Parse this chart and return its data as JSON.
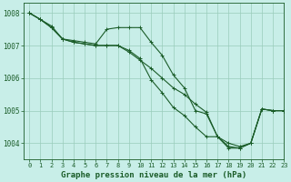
{
  "background_color": "#c8eee8",
  "grid_color": "#99ccbb",
  "line_color": "#1a5c28",
  "title": "Graphe pression niveau de la mer (hPa)",
  "xlim": [
    -0.5,
    23
  ],
  "ylim": [
    1003.5,
    1008.3
  ],
  "yticks": [
    1004,
    1005,
    1006,
    1007,
    1008
  ],
  "xticks": [
    0,
    1,
    2,
    3,
    4,
    5,
    6,
    7,
    8,
    9,
    10,
    11,
    12,
    13,
    14,
    15,
    16,
    17,
    18,
    19,
    20,
    21,
    22,
    23
  ],
  "series": [
    {
      "x": [
        0,
        1,
        2,
        3,
        4,
        5,
        6,
        7,
        8,
        9,
        10,
        11,
        12,
        13,
        14,
        15,
        16,
        17,
        18,
        19,
        20,
        21,
        22,
        23
      ],
      "y": [
        1008.0,
        1007.8,
        1007.6,
        1007.2,
        1007.15,
        1007.1,
        1007.05,
        1007.5,
        1007.55,
        1007.55,
        1007.55,
        1007.1,
        1006.7,
        1006.1,
        1005.7,
        1005.0,
        1004.9,
        1004.2,
        1003.9,
        1003.85,
        1004.0,
        1005.05,
        1005.0,
        1005.0
      ]
    },
    {
      "x": [
        0,
        1,
        2,
        3,
        4,
        5,
        6,
        7,
        8,
        9,
        10,
        11,
        12,
        13,
        14,
        15,
        16,
        17,
        18,
        19,
        20,
        21,
        22,
        23
      ],
      "y": [
        1008.0,
        1007.8,
        1007.55,
        1007.2,
        1007.1,
        1007.05,
        1007.0,
        1007.0,
        1007.0,
        1006.8,
        1006.55,
        1006.3,
        1006.0,
        1005.7,
        1005.5,
        1005.2,
        1004.95,
        1004.2,
        1004.0,
        1003.9,
        1004.0,
        1005.05,
        1005.0,
        1005.0
      ]
    },
    {
      "x": [
        0,
        1,
        2,
        3,
        4,
        5,
        6,
        7,
        8,
        9,
        10,
        11,
        12,
        13,
        14,
        15,
        16,
        17,
        18,
        19,
        20,
        21,
        22,
        23
      ],
      "y": [
        1008.0,
        1007.8,
        1007.55,
        1007.2,
        1007.1,
        1007.05,
        1007.0,
        1007.0,
        1007.0,
        1006.85,
        1006.6,
        1005.95,
        1005.55,
        1005.1,
        1004.85,
        1004.5,
        1004.2,
        1004.2,
        1003.85,
        1003.85,
        1004.0,
        1005.05,
        1005.0,
        1005.0
      ]
    }
  ],
  "ylabel_fontsize": 5.5,
  "xlabel_fontsize": 6.5,
  "tick_fontsize": 5.0,
  "linewidth": 0.8,
  "markersize": 2.5,
  "markeredgewidth": 0.7
}
